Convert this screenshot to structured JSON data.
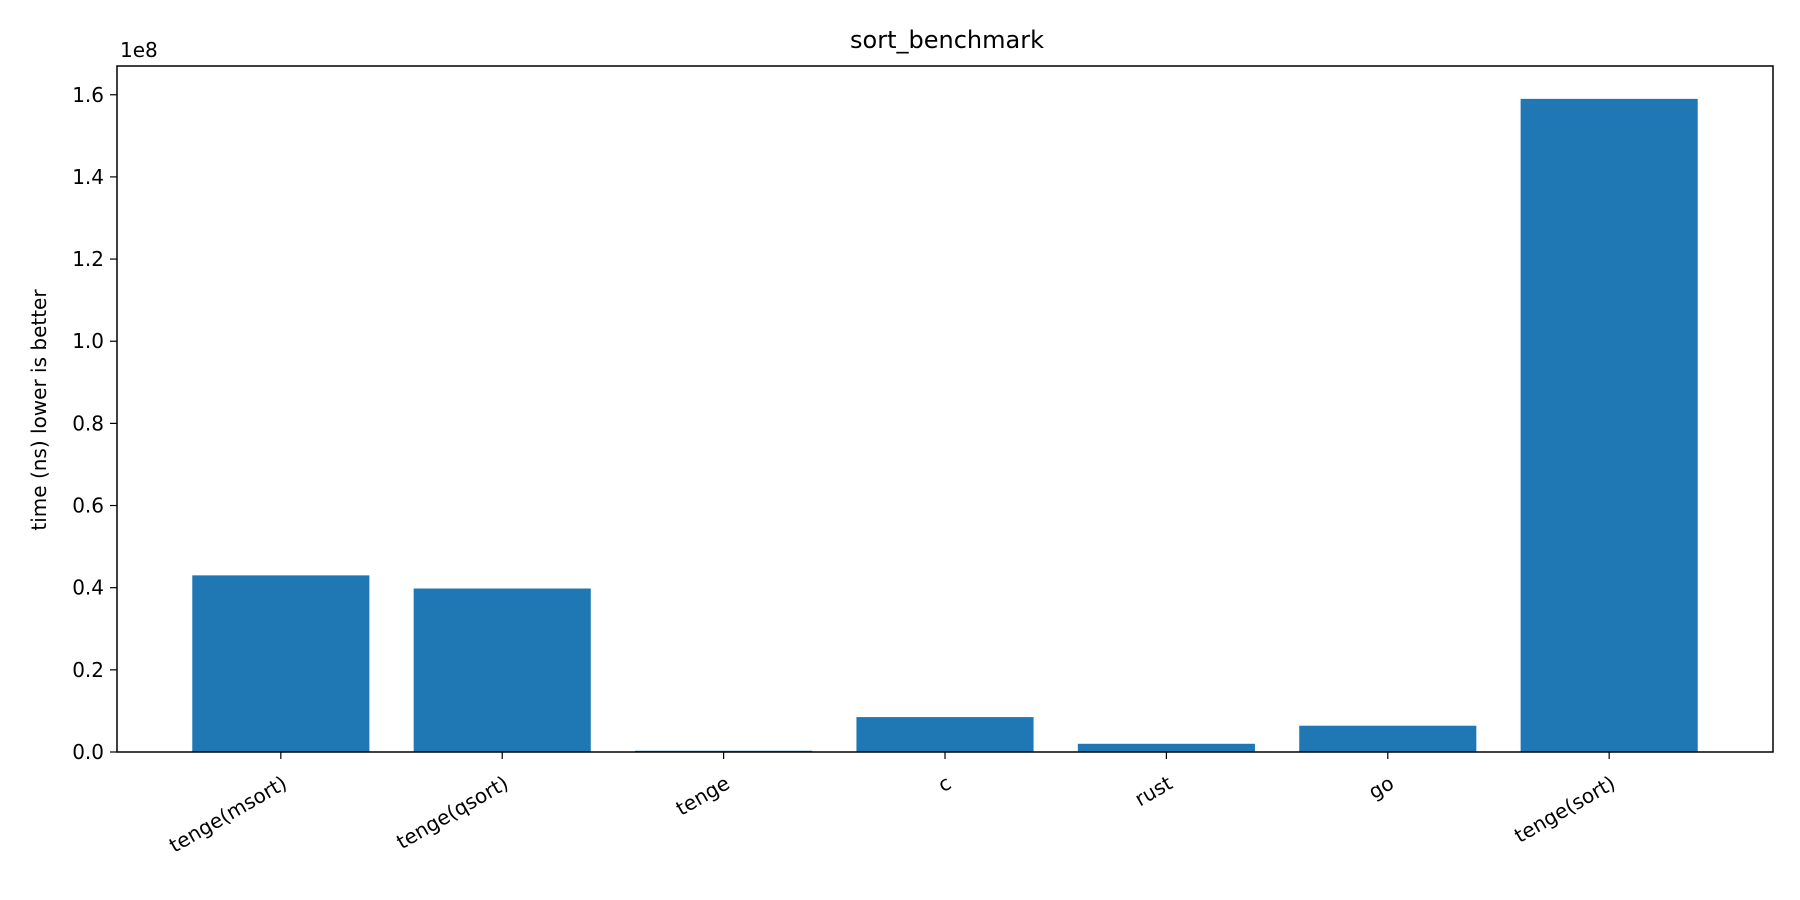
{
  "chart_data": {
    "type": "bar",
    "title": "sort_benchmark",
    "xlabel": "",
    "ylabel": "time (ns) lower is better",
    "y_offset_label": "1e8",
    "categories": [
      "tenge(msort)",
      "tenge(qsort)",
      "tenge",
      "c",
      "rust",
      "go",
      "tenge(sort)"
    ],
    "values": [
      43000000,
      39800000,
      300000,
      8500000,
      2000000,
      6400000,
      159000000
    ],
    "ylim": [
      0,
      167000000
    ],
    "yticks": [
      0,
      20000000,
      40000000,
      60000000,
      80000000,
      100000000,
      120000000,
      140000000,
      160000000
    ],
    "ytick_labels": [
      "0.0",
      "0.2",
      "0.4",
      "0.6",
      "0.8",
      "1.0",
      "1.2",
      "1.4",
      "1.6"
    ],
    "bar_color": "#1f77b4",
    "grid": false,
    "legend": "none"
  }
}
